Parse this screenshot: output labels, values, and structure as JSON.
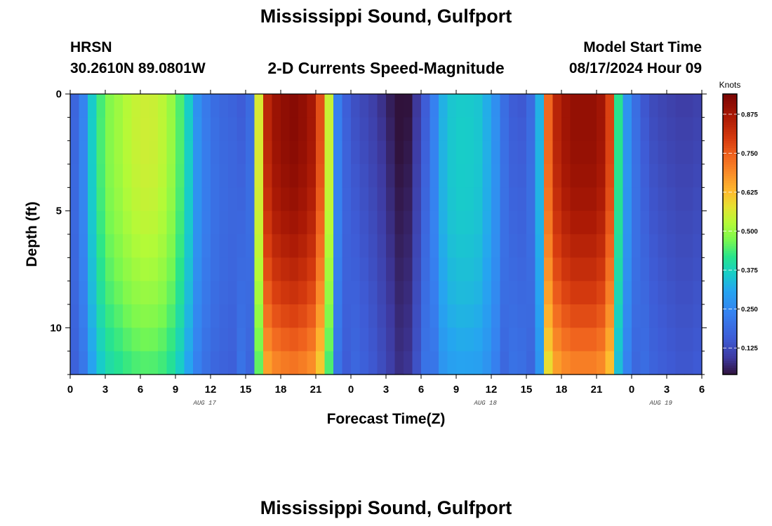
{
  "title": "Mississippi Sound, Gulfport",
  "station_code": "HRSN",
  "station_coords": "30.2610N  89.0801W",
  "subtitle": "2-D Currents Speed-Magnitude",
  "model_start_label": "Model Start Time",
  "model_start_value": "08/17/2024 Hour 09",
  "footer_title": "Mississippi Sound, Gulfport",
  "chart_data": {
    "type": "heatmap",
    "title": "2-D Currents Speed-Magnitude",
    "xlabel": "Forecast Time(Z)",
    "ylabel": "Depth (ft)",
    "x_range_hours": [
      0,
      54
    ],
    "ylim": [
      12,
      0
    ],
    "x_tick_labels": [
      "0",
      "3",
      "6",
      "9",
      "12",
      "15",
      "18",
      "21",
      "0",
      "3",
      "6",
      "9",
      "12",
      "15",
      "18",
      "21",
      "0",
      "3",
      "6"
    ],
    "y_tick_values": [
      0,
      5,
      10
    ],
    "y_tick_labels": [
      "0",
      "5",
      "10"
    ],
    "date_labels": [
      {
        "text": "AUG 17",
        "hour": 11.5
      },
      {
        "text": "AUG 18",
        "hour": 35.5
      },
      {
        "text": "AUG 19",
        "hour": 50.5
      }
    ],
    "colorbar": {
      "label": "Knots",
      "min": 0.04,
      "max": 0.94,
      "ticks": [
        0.125,
        0.25,
        0.375,
        0.5,
        0.625,
        0.75,
        0.875
      ],
      "tick_labels": [
        "0.125",
        "0.250",
        "0.375",
        "0.500",
        "0.625",
        "0.750",
        "0.875"
      ]
    },
    "time_step_hours": 0.75,
    "depth_levels": 12,
    "surface_speed_profile": [
      [
        0,
        0.15
      ],
      [
        1,
        0.22
      ],
      [
        2,
        0.38
      ],
      [
        3,
        0.47
      ],
      [
        4,
        0.5
      ],
      [
        5,
        0.53
      ],
      [
        6,
        0.55
      ],
      [
        7,
        0.55
      ],
      [
        8,
        0.53
      ],
      [
        9,
        0.48
      ],
      [
        10,
        0.38
      ],
      [
        11,
        0.25
      ],
      [
        12,
        0.2
      ],
      [
        13,
        0.18
      ],
      [
        14,
        0.17
      ],
      [
        15,
        0.15
      ],
      [
        15.5,
        0.2
      ],
      [
        16,
        0.5
      ],
      [
        16.5,
        0.75
      ],
      [
        17,
        0.87
      ],
      [
        18,
        0.9
      ],
      [
        19,
        0.92
      ],
      [
        20,
        0.9
      ],
      [
        21,
        0.86
      ],
      [
        22,
        0.62
      ],
      [
        22.5,
        0.32
      ],
      [
        23,
        0.2
      ],
      [
        24,
        0.14
      ],
      [
        25,
        0.12
      ],
      [
        26,
        0.1
      ],
      [
        27,
        0.07
      ],
      [
        28,
        0.03
      ],
      [
        29,
        0.04
      ],
      [
        30,
        0.12
      ],
      [
        31,
        0.22
      ],
      [
        32,
        0.34
      ],
      [
        33,
        0.36
      ],
      [
        34,
        0.36
      ],
      [
        35,
        0.35
      ],
      [
        36,
        0.3
      ],
      [
        37,
        0.2
      ],
      [
        38,
        0.15
      ],
      [
        39,
        0.15
      ],
      [
        40,
        0.25
      ],
      [
        40.5,
        0.55
      ],
      [
        41,
        0.8
      ],
      [
        42,
        0.87
      ],
      [
        43,
        0.9
      ],
      [
        44,
        0.9
      ],
      [
        45,
        0.9
      ],
      [
        46,
        0.85
      ],
      [
        46.5,
        0.6
      ],
      [
        47,
        0.35
      ],
      [
        48,
        0.22
      ],
      [
        49,
        0.15
      ],
      [
        50,
        0.12
      ],
      [
        51,
        0.11
      ],
      [
        52,
        0.1
      ],
      [
        53,
        0.1
      ],
      [
        54,
        0.11
      ]
    ]
  }
}
